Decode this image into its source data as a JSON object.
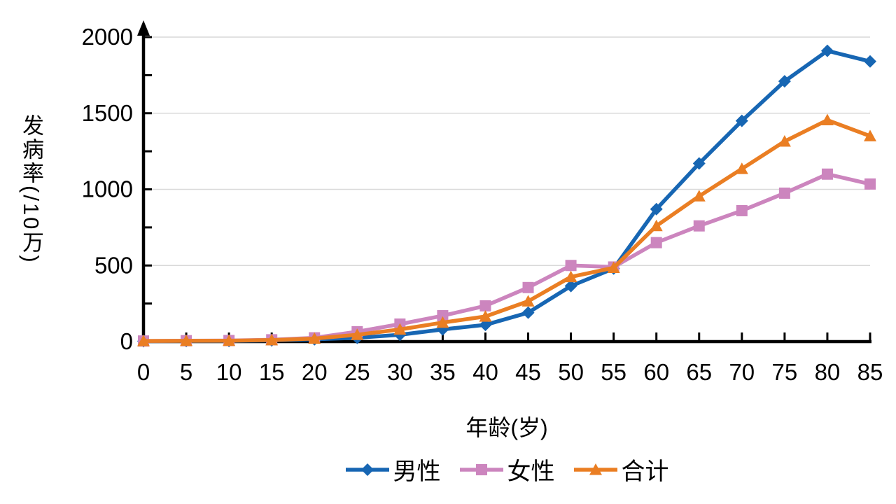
{
  "chart_data": {
    "type": "line",
    "xlabel": "年龄(岁)",
    "ylabel": "发病率(/10万)",
    "x": [
      0,
      5,
      10,
      15,
      20,
      25,
      30,
      35,
      40,
      45,
      50,
      55,
      60,
      65,
      70,
      75,
      80,
      85
    ],
    "ylim": [
      0,
      2000
    ],
    "y_tick_major": 500,
    "y_tick_minor": 250,
    "y_tick_labels": [
      "0",
      "500",
      "1000",
      "1500",
      "2000"
    ],
    "grid": "horizontal-major-only",
    "legend_position": "bottom",
    "colors": {
      "axis": "#000000",
      "grid": "#d9d9d9",
      "background": "#ffffff",
      "tick_text": "#000000"
    },
    "series": [
      {
        "key": "male",
        "name": "男性",
        "color": "#1766b3",
        "marker": "diamond",
        "values": [
          3,
          4,
          4,
          8,
          15,
          25,
          45,
          80,
          110,
          190,
          365,
          480,
          870,
          1170,
          1450,
          1710,
          1910,
          1840
        ]
      },
      {
        "key": "female",
        "name": "女性",
        "color": "#cc85be",
        "marker": "square",
        "values": [
          4,
          6,
          7,
          12,
          25,
          65,
          115,
          170,
          235,
          355,
          500,
          490,
          650,
          760,
          860,
          975,
          1100,
          1035
        ]
      },
      {
        "key": "total",
        "name": "合计",
        "color": "#ea7e23",
        "marker": "triangle",
        "values": [
          4,
          5,
          6,
          10,
          20,
          45,
          80,
          125,
          165,
          265,
          425,
          485,
          760,
          955,
          1135,
          1315,
          1455,
          1350
        ]
      }
    ]
  }
}
